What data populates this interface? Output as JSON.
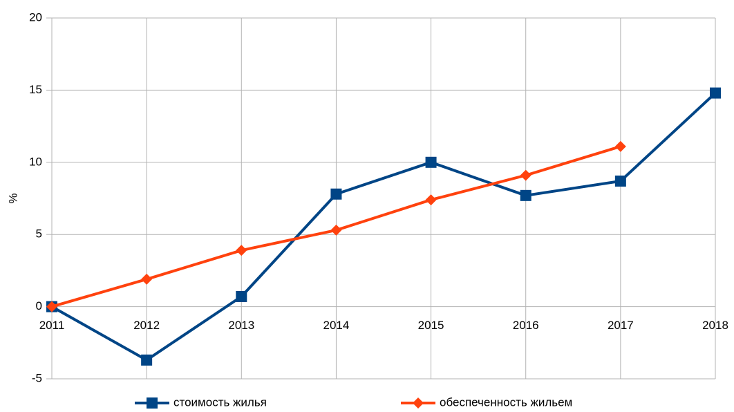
{
  "chart_data": {
    "type": "line",
    "y_label": "%",
    "x": [
      2011,
      2012,
      2013,
      2014,
      2015,
      2016,
      2017,
      2018
    ],
    "xlim": [
      2011,
      2018
    ],
    "xticks": [
      2011,
      2012,
      2013,
      2014,
      2015,
      2016,
      2017,
      2018
    ],
    "ylim": [
      -5,
      20
    ],
    "yticks": [
      -5,
      0,
      5,
      10,
      15,
      20
    ],
    "grid": true,
    "legend": "bottom",
    "series": [
      {
        "name": "стоимость жилья",
        "color": "#004586",
        "marker": "square",
        "values": [
          0,
          -3.7,
          0.7,
          7.8,
          10,
          7.7,
          8.7,
          14.8
        ]
      },
      {
        "name": "обеспеченность жильем",
        "color": "#ff420e",
        "marker": "diamond",
        "values": [
          0,
          1.9,
          3.9,
          5.3,
          7.4,
          9.1,
          11.1,
          null
        ]
      }
    ]
  }
}
